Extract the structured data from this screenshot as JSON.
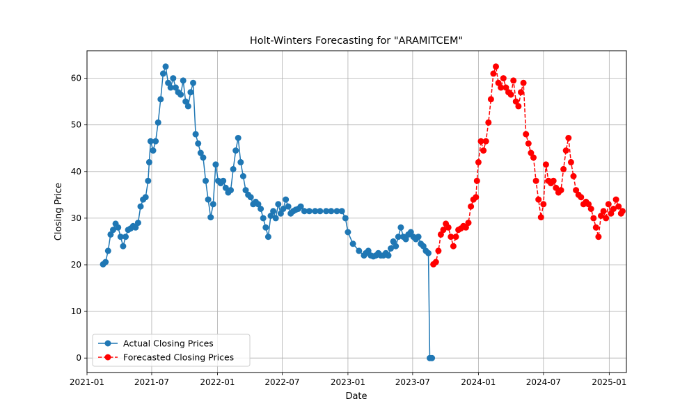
{
  "chart_data": {
    "type": "line",
    "title": "Holt-Winters Forecasting for \"ARAMITCEM\"",
    "xlabel": "Date",
    "ylabel": "Closing Price",
    "x_range": [
      "2021-01-01",
      "2025-02-18"
    ],
    "ylim": [
      -3.1,
      65.9
    ],
    "x_ticks": [
      {
        "date": "2021-01-01",
        "label": "2021-01"
      },
      {
        "date": "2021-07-01",
        "label": "2021-07"
      },
      {
        "date": "2022-01-01",
        "label": "2022-01"
      },
      {
        "date": "2022-07-01",
        "label": "2022-07"
      },
      {
        "date": "2023-01-01",
        "label": "2023-01"
      },
      {
        "date": "2023-07-01",
        "label": "2023-07"
      },
      {
        "date": "2024-01-01",
        "label": "2024-01"
      },
      {
        "date": "2024-07-01",
        "label": "2024-07"
      },
      {
        "date": "2025-01-01",
        "label": "2025-01"
      }
    ],
    "y_ticks": [
      0,
      10,
      20,
      30,
      40,
      50,
      60
    ],
    "grid": true,
    "legend_position": "lower-left",
    "series": [
      {
        "name": "Actual Closing Prices",
        "color": "#1f77b4",
        "line_style": "solid",
        "marker": "circle",
        "x": [
          "2021-02-15",
          "2021-02-22",
          "2021-03-01",
          "2021-03-08",
          "2021-03-15",
          "2021-03-22",
          "2021-03-29",
          "2021-04-05",
          "2021-04-12",
          "2021-04-19",
          "2021-04-26",
          "2021-05-03",
          "2021-05-10",
          "2021-05-17",
          "2021-05-24",
          "2021-05-31",
          "2021-06-07",
          "2021-06-14",
          "2021-06-21",
          "2021-06-24",
          "2021-06-28",
          "2021-07-05",
          "2021-07-12",
          "2021-07-19",
          "2021-07-26",
          "2021-08-02",
          "2021-08-09",
          "2021-08-16",
          "2021-08-23",
          "2021-08-30",
          "2021-09-06",
          "2021-09-13",
          "2021-09-20",
          "2021-09-27",
          "2021-10-04",
          "2021-10-11",
          "2021-10-18",
          "2021-10-25",
          "2021-11-01",
          "2021-11-08",
          "2021-11-15",
          "2021-11-22",
          "2021-11-29",
          "2021-12-06",
          "2021-12-13",
          "2021-12-20",
          "2021-12-27",
          "2022-01-03",
          "2022-01-10",
          "2022-01-17",
          "2022-01-24",
          "2022-01-31",
          "2022-02-07",
          "2022-02-14",
          "2022-02-21",
          "2022-02-28",
          "2022-03-07",
          "2022-03-14",
          "2022-03-21",
          "2022-03-28",
          "2022-04-04",
          "2022-04-11",
          "2022-04-18",
          "2022-04-25",
          "2022-05-02",
          "2022-05-09",
          "2022-05-16",
          "2022-05-23",
          "2022-05-30",
          "2022-06-06",
          "2022-06-13",
          "2022-06-20",
          "2022-06-27",
          "2022-07-04",
          "2022-07-11",
          "2022-07-18",
          "2022-07-25",
          "2022-08-01",
          "2022-08-08",
          "2022-08-15",
          "2022-08-22",
          "2022-09-01",
          "2022-09-15",
          "2022-10-01",
          "2022-10-15",
          "2022-11-01",
          "2022-11-15",
          "2022-12-01",
          "2022-12-15",
          "2022-12-25",
          "2023-01-01",
          "2023-01-15",
          "2023-02-01",
          "2023-02-15",
          "2023-02-20",
          "2023-02-27",
          "2023-03-06",
          "2023-03-13",
          "2023-03-20",
          "2023-03-27",
          "2023-04-03",
          "2023-04-10",
          "2023-04-17",
          "2023-04-24",
          "2023-05-01",
          "2023-05-08",
          "2023-05-15",
          "2023-05-22",
          "2023-05-29",
          "2023-06-05",
          "2023-06-12",
          "2023-06-19",
          "2023-06-26",
          "2023-07-03",
          "2023-07-10",
          "2023-07-17",
          "2023-07-24",
          "2023-07-31",
          "2023-08-07",
          "2023-08-14",
          "2023-08-18",
          "2023-08-24"
        ],
        "y": [
          20.1,
          20.6,
          23.0,
          26.5,
          27.5,
          28.8,
          28.0,
          26.0,
          24.0,
          26.0,
          27.5,
          27.8,
          28.3,
          28.0,
          29.0,
          32.5,
          34.0,
          34.5,
          38.0,
          42.0,
          46.5,
          44.5,
          46.5,
          50.5,
          55.5,
          61.0,
          62.5,
          59.0,
          58.0,
          60.0,
          58.0,
          57.0,
          56.5,
          59.5,
          55.0,
          54.0,
          57.0,
          59.0,
          48.0,
          46.0,
          44.0,
          43.0,
          38.0,
          34.0,
          30.2,
          33.0,
          41.5,
          38.0,
          37.5,
          38.0,
          36.5,
          35.5,
          36.0,
          40.5,
          44.5,
          47.2,
          42.0,
          39.0,
          36.0,
          35.0,
          34.5,
          33.0,
          33.5,
          33.0,
          32.0,
          30.0,
          28.0,
          26.0,
          30.5,
          31.5,
          30.0,
          33.0,
          31.0,
          32.0,
          34.0,
          32.5,
          31.0,
          31.5,
          31.8,
          32.0,
          32.5,
          31.5,
          31.5,
          31.5,
          31.5,
          31.5,
          31.5,
          31.5,
          31.5,
          30.0,
          27.0,
          24.5,
          23.0,
          22.0,
          22.5,
          23.0,
          22.0,
          21.8,
          22.0,
          22.5,
          22.0,
          22.0,
          22.5,
          22.0,
          23.5,
          25.0,
          24.0,
          26.0,
          28.0,
          26.0,
          25.5,
          26.5,
          27.0,
          26.0,
          25.5,
          26.0,
          24.5,
          24.0,
          23.0,
          22.5,
          0.0,
          0.0
        ]
      },
      {
        "name": "Forecasted Closing Prices",
        "color": "#ff0000",
        "line_style": "dashed",
        "marker": "circle",
        "x": [
          "2023-08-28",
          "2023-09-04",
          "2023-09-11",
          "2023-09-18",
          "2023-09-25",
          "2023-10-02",
          "2023-10-09",
          "2023-10-16",
          "2023-10-23",
          "2023-10-30",
          "2023-11-06",
          "2023-11-13",
          "2023-11-20",
          "2023-11-27",
          "2023-12-04",
          "2023-12-11",
          "2023-12-18",
          "2023-12-25",
          "2023-12-28",
          "2024-01-01",
          "2024-01-08",
          "2024-01-15",
          "2024-01-22",
          "2024-01-29",
          "2024-02-05",
          "2024-02-12",
          "2024-02-19",
          "2024-02-26",
          "2024-03-04",
          "2024-03-11",
          "2024-03-18",
          "2024-03-25",
          "2024-04-01",
          "2024-04-08",
          "2024-04-15",
          "2024-04-22",
          "2024-04-29",
          "2024-05-06",
          "2024-05-13",
          "2024-05-20",
          "2024-05-27",
          "2024-06-03",
          "2024-06-10",
          "2024-06-17",
          "2024-06-24",
          "2024-07-01",
          "2024-07-08",
          "2024-07-15",
          "2024-07-22",
          "2024-07-29",
          "2024-08-05",
          "2024-08-12",
          "2024-08-19",
          "2024-08-26",
          "2024-09-02",
          "2024-09-09",
          "2024-09-16",
          "2024-09-23",
          "2024-09-30",
          "2024-10-07",
          "2024-10-14",
          "2024-10-21",
          "2024-10-28",
          "2024-11-04",
          "2024-11-11",
          "2024-11-18",
          "2024-11-25",
          "2024-12-02",
          "2024-12-09",
          "2024-12-16",
          "2024-12-23",
          "2024-12-30",
          "2025-01-06",
          "2025-01-13",
          "2025-01-20",
          "2025-01-27",
          "2025-02-03",
          "2025-02-07"
        ],
        "y": [
          20.1,
          20.6,
          23.0,
          26.5,
          27.5,
          28.8,
          28.0,
          26.0,
          24.0,
          26.0,
          27.5,
          27.8,
          28.3,
          28.0,
          29.0,
          32.5,
          34.0,
          34.5,
          38.0,
          42.0,
          46.5,
          44.5,
          46.5,
          50.5,
          55.5,
          61.0,
          62.5,
          59.0,
          58.0,
          60.0,
          58.0,
          57.0,
          56.5,
          59.5,
          55.0,
          54.0,
          57.0,
          59.0,
          48.0,
          46.0,
          44.0,
          43.0,
          38.0,
          34.0,
          30.2,
          33.0,
          41.5,
          38.0,
          37.5,
          38.0,
          36.5,
          35.5,
          36.0,
          40.5,
          44.5,
          47.2,
          42.0,
          39.0,
          36.0,
          35.0,
          34.5,
          33.0,
          33.5,
          33.0,
          32.0,
          30.0,
          28.0,
          26.0,
          30.5,
          31.5,
          30.0,
          33.0,
          31.0,
          32.0,
          34.0,
          32.5,
          31.0,
          31.5
        ]
      }
    ]
  }
}
